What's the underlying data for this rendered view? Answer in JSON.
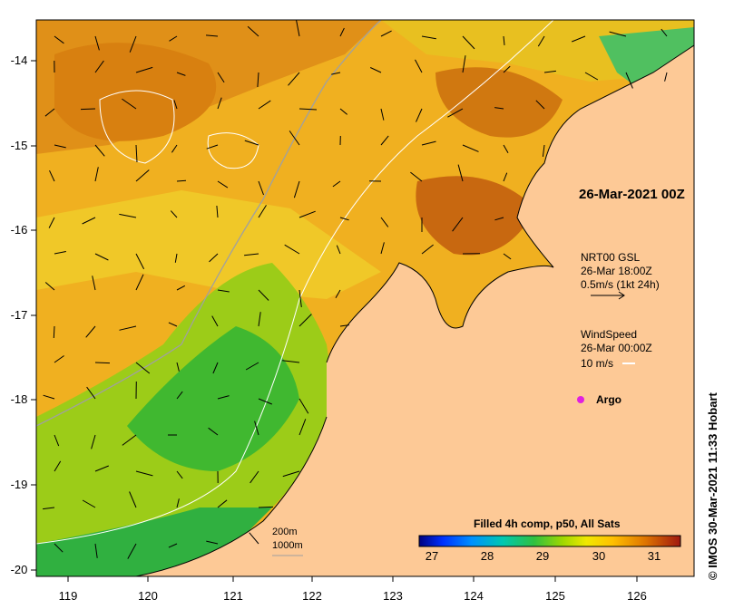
{
  "map": {
    "date_label": "26-Mar-2021 00Z",
    "lon_ticks": [
      "119",
      "120",
      "121",
      "122",
      "123",
      "124",
      "125",
      "126"
    ],
    "lat_ticks": [
      "-14",
      "-15",
      "-16",
      "-17",
      "-18",
      "-19",
      "-20"
    ]
  },
  "legend": {
    "currents_title": "NRT00 GSL",
    "currents_time": "26-Mar 18:00Z",
    "currents_scale": "0.5m/s (1kt 24h)",
    "wind_title": "WindSpeed",
    "wind_time": "26-Mar 00:00Z",
    "wind_scale": "10 m/s",
    "argo_label": "Argo",
    "isobath_200": "200m",
    "isobath_1000": "1000m"
  },
  "colorbar": {
    "title": "Filled 4h comp, p50, All Sats",
    "ticks": [
      "27",
      "28",
      "29",
      "30",
      "31"
    ],
    "colors": [
      "#000080",
      "#0000ff",
      "#0080ff",
      "#00c0c0",
      "#20c060",
      "#40c020",
      "#a0d000",
      "#e0e000",
      "#ffc000",
      "#f0a000",
      "#d07000",
      "#a02000"
    ]
  },
  "credit": "IMOS 30-Mar-2021 11:33 Hobart",
  "colors": {
    "land": "#fdc996",
    "warm": "#e8a020",
    "hot": "#c87010",
    "mid": "#f0c020",
    "cool": "#70c820",
    "cooler": "#20b040"
  }
}
